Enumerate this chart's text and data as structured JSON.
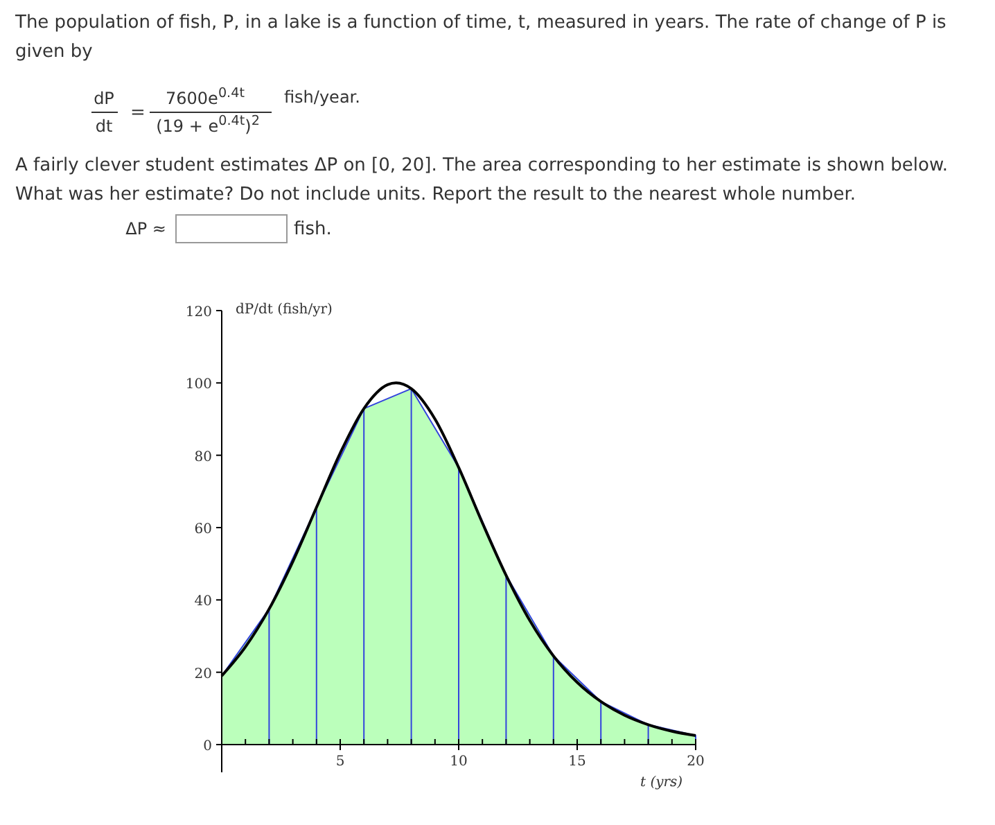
{
  "chart_data": {
    "type": "line",
    "annotations": [
      "The population of fish, P, in a lake is a function of time, t, measured in years. The rate of change of P is\ngiven by",
      "dP",
      "dt",
      "7600e$^{0.4t}$",
      "(19 + e$^{0.4t}$)$^{2}$",
      "fish/year.",
      "A fairly clever student estimates ΔP on [0, 20]. The area corresponding to her estimate is shown below.\nWhat was her estimate? Do not include units. Report the result to the nearest whole number.",
      "ΔP ≈",
      "fish.",
      "="
    ],
    "xlabel": "t (yrs)",
    "ylabel": "dP/dt (fish/yr)",
    "series": [
      {
        "type": "area",
        "color": "#bbffbb",
        "x": [
          0,
          2,
          4,
          6,
          8,
          10,
          12,
          14,
          16,
          18,
          20
        ],
        "values": [
          19,
          37.5,
          65.6,
          92.9,
          98.4,
          76.6,
          46.8,
          24.5,
          11.9,
          5.5,
          2.5
        ]
      },
      {
        "color": "#000000",
        "x": [
          0,
          1,
          2,
          3,
          4,
          5,
          6,
          7,
          7.36,
          8,
          9,
          10,
          11,
          12,
          13,
          14,
          15,
          16,
          17,
          18,
          19,
          20
        ],
        "values": [
          19,
          27,
          37.5,
          50.6,
          65.6,
          80.6,
          92.9,
          99.5,
          100,
          98.4,
          90,
          76.6,
          61.3,
          46.8,
          34.3,
          24.5,
          17.2,
          11.9,
          8.1,
          5.5,
          3.7,
          2.5
        ]
      }
    ],
    "xlim": [
      0,
      20
    ],
    "ylim": [
      0,
      120
    ],
    "xticks": [
      {
        "value": 1,
        "label": null
      },
      {
        "value": 2,
        "label": null
      },
      {
        "value": 3,
        "label": null
      },
      {
        "value": 4,
        "label": null
      },
      5,
      {
        "value": 6,
        "label": null
      },
      {
        "value": 7,
        "label": null
      },
      {
        "value": 8,
        "label": null
      },
      {
        "value": 9,
        "label": null
      },
      10,
      {
        "value": 11,
        "label": null
      },
      {
        "value": 12,
        "label": null
      },
      {
        "value": 13,
        "label": null
      },
      {
        "value": 14,
        "label": null
      },
      15,
      {
        "value": 16,
        "label": null
      },
      {
        "value": 17,
        "label": null
      },
      {
        "value": 18,
        "label": null
      },
      {
        "value": 19,
        "label": null
      },
      20
    ],
    "yticks": [
      0,
      20,
      40,
      60,
      80,
      100,
      120
    ],
    "grid": false
  }
}
